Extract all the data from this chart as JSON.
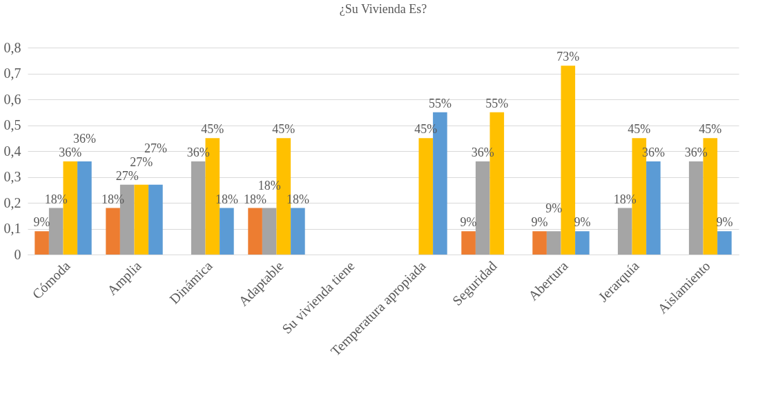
{
  "chart_data": {
    "type": "bar",
    "title": "¿Su Vivienda Es?",
    "categories": [
      "Cómoda",
      "Amplia",
      "Dinámica",
      "Adaptable",
      "Su vivienda tiene",
      "Temperatura apropiada",
      "Seguridad",
      "Abertura",
      "Jerarquía",
      "Aislamiento"
    ],
    "series": [
      {
        "color": "#ed7d31",
        "values": [
          0.09,
          0.18,
          null,
          0.18,
          null,
          null,
          0.09,
          0.09,
          null,
          null
        ],
        "value_labels": [
          "9%",
          "18%",
          null,
          "18%",
          null,
          null,
          "9%",
          "9%",
          null,
          null
        ]
      },
      {
        "color": "#a5a5a5",
        "values": [
          0.18,
          0.27,
          0.36,
          0.18,
          null,
          null,
          0.36,
          0.09,
          0.18,
          0.36
        ],
        "value_labels": [
          "18%",
          "27%",
          "36%",
          "18%",
          null,
          null,
          "36%",
          "9%",
          "18%",
          "36%"
        ]
      },
      {
        "color": "#ffc000",
        "values": [
          0.36,
          0.27,
          0.45,
          0.45,
          null,
          0.45,
          0.55,
          0.73,
          0.45,
          0.45
        ],
        "value_labels": [
          "36%",
          "27%",
          "45%",
          "45%",
          null,
          "45%",
          "55%",
          "73%",
          "45%",
          "45%"
        ]
      },
      {
        "color": "#5b9bd5",
        "values": [
          0.36,
          0.27,
          0.18,
          0.18,
          null,
          0.55,
          null,
          0.09,
          0.36,
          0.09
        ],
        "value_labels": [
          "36%",
          "27%",
          "18%",
          "18%",
          null,
          "55%",
          null,
          "9%",
          "36%",
          "9%"
        ]
      }
    ],
    "ylim": [
      0,
      0.8
    ],
    "yticks": [
      0,
      {
        "value": 0.1,
        "label": "0,1"
      },
      {
        "value": 0.2,
        "label": "0,2"
      },
      {
        "value": 0.3,
        "label": "0,3"
      },
      {
        "value": 0.4,
        "label": "0,4"
      },
      {
        "value": 0.5,
        "label": "0,5"
      },
      {
        "value": 0.6,
        "label": "0,6"
      },
      {
        "value": 0.7,
        "label": "0,7"
      },
      {
        "value": 0.8,
        "label": "0,8"
      }
    ],
    "grid": "y",
    "legend": false
  }
}
